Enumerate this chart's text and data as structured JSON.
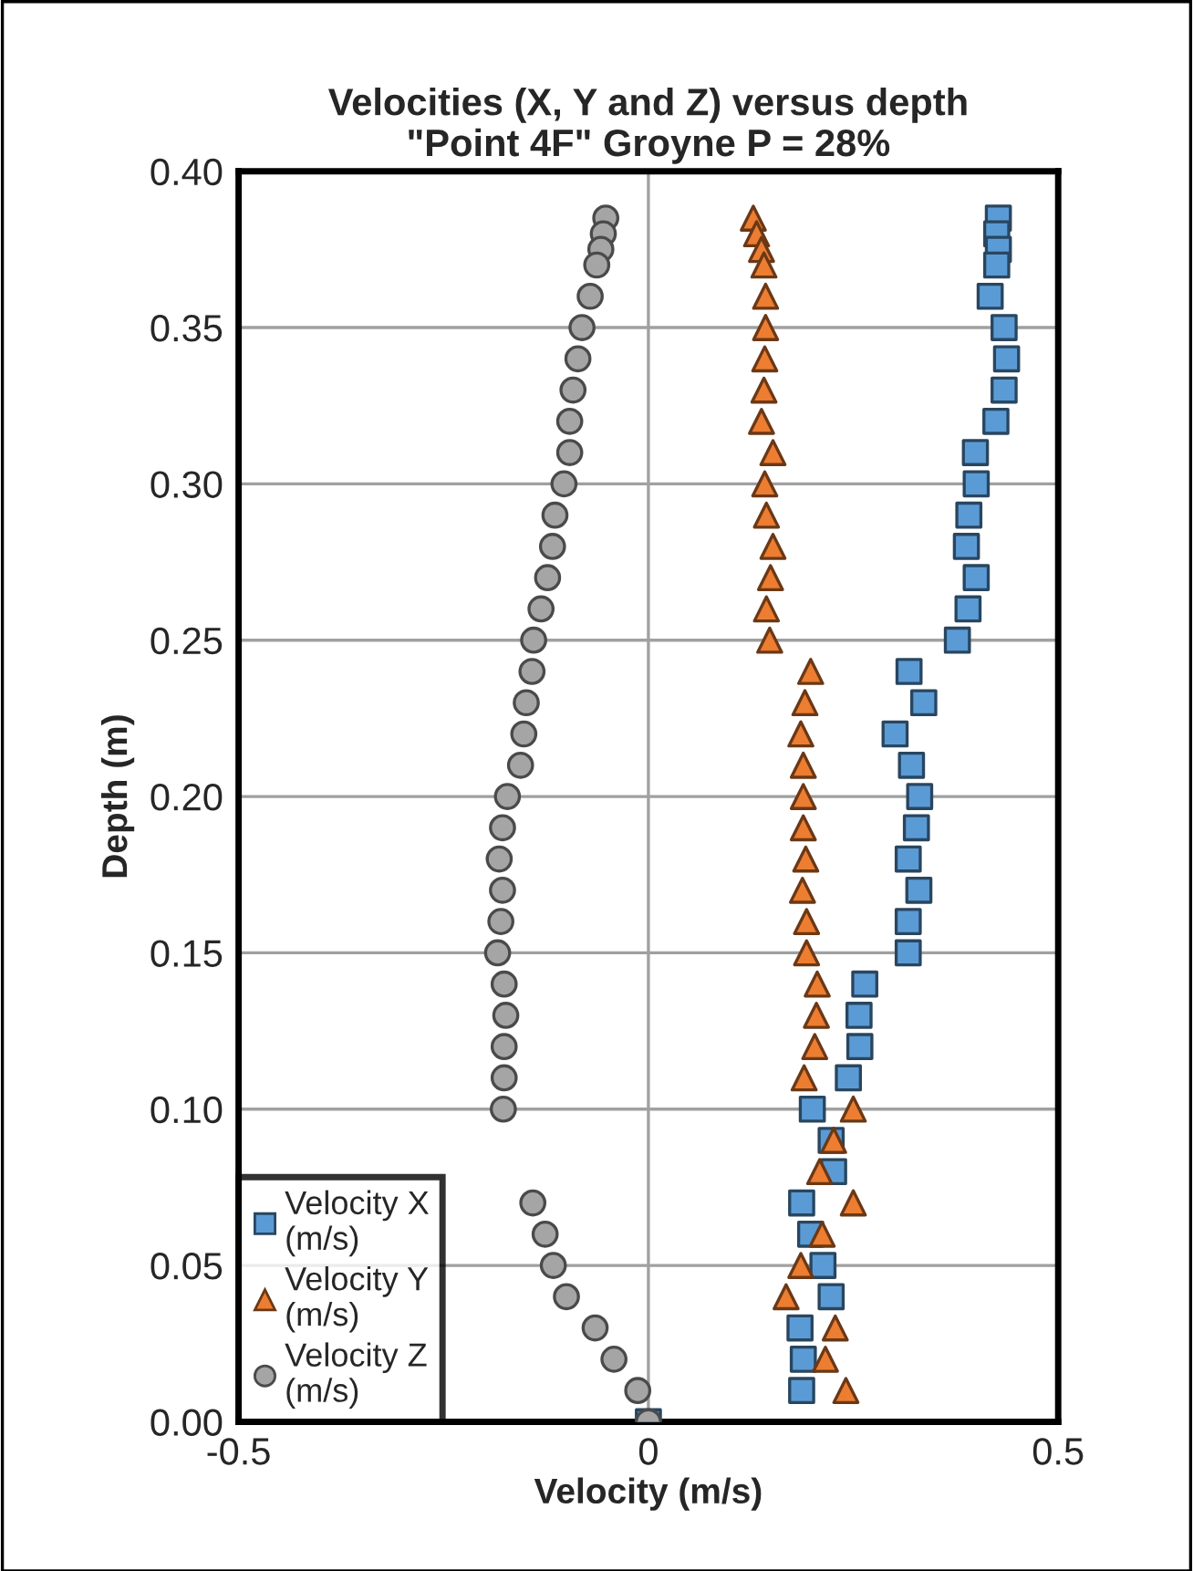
{
  "chart_data": {
    "type": "scatter",
    "title": "Velocities (X, Y and Z) versus depth\n\"Point 4F\" Groyne P = 28%",
    "xlabel": "Velocity (m/s)",
    "ylabel": "Depth (m)",
    "xlim": [
      -0.5,
      0.5
    ],
    "xticks": [
      -0.5,
      0,
      0.5
    ],
    "ylim": [
      0,
      0.4
    ],
    "yticks": [
      {
        "value": 0,
        "label": "0.00"
      },
      {
        "value": 0.05,
        "label": "0.05"
      },
      {
        "value": 0.1,
        "label": "0.10"
      },
      {
        "value": 0.15,
        "label": "0.15"
      },
      {
        "value": 0.2,
        "label": "0.20"
      },
      {
        "value": 0.25,
        "label": "0.25"
      },
      {
        "value": 0.3,
        "label": "0.30"
      },
      {
        "value": 0.35,
        "label": "0.35"
      },
      {
        "value": 0.4,
        "label": "0.40"
      }
    ],
    "grid": true,
    "legend": "bottom left",
    "series": [
      {
        "name": "Velocity X\n(m/s)",
        "color": "#5b9bd5",
        "marker": "square",
        "x": [
          0.427,
          0.425,
          0.427,
          0.425,
          0.417,
          0.434,
          0.437,
          0.434,
          0.424,
          0.399,
          0.4,
          0.391,
          0.388,
          0.4,
          0.39,
          0.377,
          0.318,
          0.336,
          0.301,
          0.321,
          0.331,
          0.327,
          0.317,
          0.33,
          0.317,
          0.317,
          0.264,
          0.257,
          0.258,
          0.244,
          0.2,
          0.223,
          0.226,
          0.187,
          0.198,
          0.213,
          0.223,
          0.185,
          0.189,
          0.187,
          0
        ],
        "values": [
          0.385,
          0.38,
          0.375,
          0.37,
          0.36,
          0.35,
          0.34,
          0.33,
          0.32,
          0.31,
          0.3,
          0.29,
          0.28,
          0.27,
          0.26,
          0.25,
          0.24,
          0.23,
          0.22,
          0.21,
          0.2,
          0.19,
          0.18,
          0.17,
          0.16,
          0.15,
          0.14,
          0.13,
          0.12,
          0.11,
          0.1,
          0.09,
          0.08,
          0.07,
          0.06,
          0.05,
          0.04,
          0.03,
          0.02,
          0.01,
          0
        ]
      },
      {
        "name": "Velocity Y\n(m/s)",
        "color": "#ed7d31",
        "marker": "triangle",
        "x": [
          0.128,
          0.132,
          0.138,
          0.141,
          0.143,
          0.143,
          0.142,
          0.141,
          0.138,
          0.152,
          0.142,
          0.144,
          0.152,
          0.149,
          0.144,
          0.148,
          0.198,
          0.191,
          0.186,
          0.189,
          0.189,
          0.189,
          0.192,
          0.188,
          0.193,
          0.193,
          0.206,
          0.205,
          0.203,
          0.19,
          0.25,
          0.226,
          0.209,
          0.25,
          0.212,
          0.186,
          0.168,
          0.228,
          0.216,
          0.241,
          null
        ],
        "values": [
          0.385,
          0.38,
          0.375,
          0.37,
          0.36,
          0.35,
          0.34,
          0.33,
          0.32,
          0.31,
          0.3,
          0.29,
          0.28,
          0.27,
          0.26,
          0.25,
          0.24,
          0.23,
          0.22,
          0.21,
          0.2,
          0.19,
          0.18,
          0.17,
          0.16,
          0.15,
          0.14,
          0.13,
          0.12,
          0.11,
          0.1,
          0.09,
          0.08,
          0.07,
          0.06,
          0.05,
          0.04,
          0.03,
          0.02,
          0.01,
          null
        ]
      },
      {
        "name": "Velocity Z\n(m/s)",
        "color": "#a5a5a5",
        "marker": "circle",
        "x": [
          -0.052,
          -0.055,
          -0.058,
          -0.063,
          -0.071,
          -0.081,
          -0.086,
          -0.092,
          -0.096,
          -0.096,
          -0.103,
          -0.114,
          -0.117,
          -0.123,
          -0.131,
          -0.14,
          -0.142,
          -0.149,
          -0.152,
          -0.156,
          -0.172,
          -0.178,
          -0.182,
          -0.178,
          -0.18,
          -0.184,
          -0.176,
          -0.174,
          -0.176,
          -0.176,
          -0.177,
          null,
          null,
          -0.141,
          -0.126,
          -0.116,
          -0.1,
          -0.065,
          -0.042,
          -0.013,
          0
        ],
        "values": [
          0.385,
          0.38,
          0.375,
          0.37,
          0.36,
          0.35,
          0.34,
          0.33,
          0.32,
          0.31,
          0.3,
          0.29,
          0.28,
          0.27,
          0.26,
          0.25,
          0.24,
          0.23,
          0.22,
          0.21,
          0.2,
          0.19,
          0.18,
          0.17,
          0.16,
          0.15,
          0.14,
          0.13,
          0.12,
          0.11,
          0.1,
          null,
          null,
          0.07,
          0.06,
          0.05,
          0.04,
          0.03,
          0.02,
          0.01,
          0
        ]
      }
    ]
  }
}
